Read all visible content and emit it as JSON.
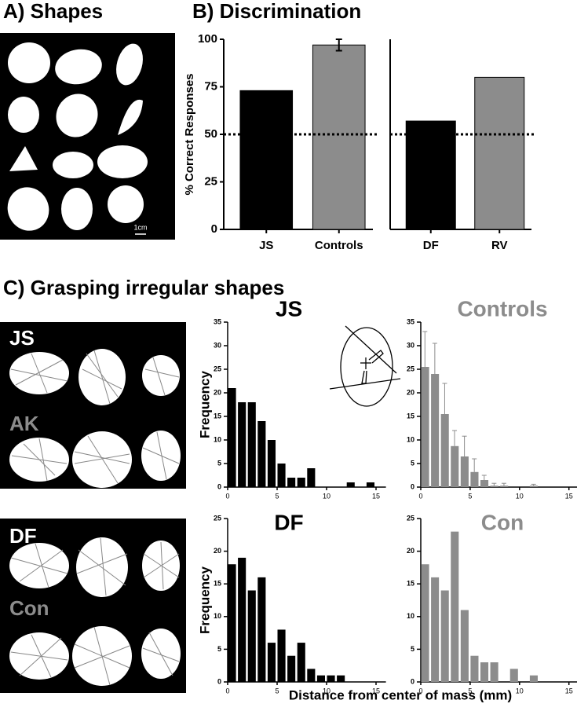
{
  "panels": {
    "a": "A) Shapes",
    "b": "B) Discrimination",
    "c": "C) Grasping irregular shapes"
  },
  "scale_label": "1cm",
  "photo_labels": [
    "JS",
    "AK",
    "DF",
    "Con"
  ],
  "x_label": "Distance from center of mass (mm)",
  "chart_data": [
    {
      "type": "bar",
      "ylabel": "% Correct Responses",
      "categories": [
        "JS",
        "Controls"
      ],
      "values": [
        73,
        97
      ],
      "errors": [
        null,
        3
      ],
      "colors": [
        "#000000",
        "#8c8c8c"
      ],
      "ylim": [
        0,
        100
      ],
      "yticks": [
        0,
        25,
        50,
        75,
        100
      ],
      "reference_line": 50
    },
    {
      "type": "bar",
      "categories": [
        "DF",
        "RV"
      ],
      "values": [
        57,
        80
      ],
      "colors": [
        "#000000",
        "#8c8c8c"
      ],
      "ylim": [
        0,
        100
      ],
      "reference_line": 50
    },
    {
      "type": "histogram",
      "title": "JS",
      "title_color": "#000000",
      "ylabel": "Frequency",
      "color": "#000000",
      "bins": [
        0,
        1,
        2,
        3,
        4,
        5,
        6,
        7,
        8,
        9,
        10,
        11,
        12,
        13,
        14,
        15,
        16
      ],
      "values": [
        21,
        18,
        18,
        14,
        10,
        5,
        2,
        2,
        4,
        0,
        0,
        0,
        1,
        0,
        1,
        0
      ],
      "xlim": [
        0,
        16
      ],
      "xticks": [
        0,
        5,
        10,
        15
      ],
      "ylim": [
        0,
        35
      ],
      "yticks": [
        0,
        5,
        10,
        15,
        20,
        25,
        30,
        35
      ]
    },
    {
      "type": "histogram",
      "title": "Controls",
      "title_color": "#8c8c8c",
      "color": "#8c8c8c",
      "bins": [
        0,
        1,
        2,
        3,
        4,
        5,
        6,
        7,
        8,
        9,
        10,
        11,
        12,
        13,
        14,
        15,
        16
      ],
      "values": [
        25.5,
        24,
        15.5,
        8.7,
        6.5,
        3.2,
        1.5,
        0.3,
        0.3,
        0,
        0,
        0.3,
        0,
        0,
        0,
        0
      ],
      "errors": [
        7.5,
        6.5,
        6.5,
        3.3,
        4.3,
        2.8,
        1,
        0.5,
        0.5,
        null,
        null,
        0.3,
        null,
        null,
        null,
        null
      ],
      "xlim": [
        0,
        16
      ],
      "xticks": [
        0,
        5,
        10,
        15
      ],
      "ylim": [
        0,
        35
      ],
      "yticks": [
        0,
        5,
        10,
        15,
        20,
        25,
        30,
        35
      ]
    },
    {
      "type": "histogram",
      "title": "DF",
      "title_color": "#000000",
      "ylabel": "Frequency",
      "color": "#000000",
      "bins": [
        0,
        1,
        2,
        3,
        4,
        5,
        6,
        7,
        8,
        9,
        10,
        11,
        12,
        13,
        14,
        15,
        16
      ],
      "values": [
        18,
        19,
        14,
        16,
        6,
        8,
        4,
        6,
        2,
        1,
        1,
        1,
        0,
        0,
        0,
        0
      ],
      "xlim": [
        0,
        16
      ],
      "xticks": [
        0,
        5,
        10,
        15
      ],
      "ylim": [
        0,
        25
      ],
      "yticks": [
        0,
        5,
        10,
        15,
        20,
        25
      ]
    },
    {
      "type": "histogram",
      "title": "Con",
      "title_color": "#8c8c8c",
      "color": "#8c8c8c",
      "bins": [
        0,
        1,
        2,
        3,
        4,
        5,
        6,
        7,
        8,
        9,
        10,
        11,
        12,
        13,
        14,
        15,
        16
      ],
      "values": [
        18,
        16,
        14,
        23,
        11,
        4,
        3,
        3,
        0,
        2,
        0,
        1,
        0,
        0,
        0,
        0
      ],
      "xlim": [
        0,
        16
      ],
      "xticks": [
        0,
        5,
        10,
        15
      ],
      "ylim": [
        0,
        25
      ],
      "yticks": [
        0,
        5,
        10,
        15,
        20,
        25
      ]
    }
  ]
}
